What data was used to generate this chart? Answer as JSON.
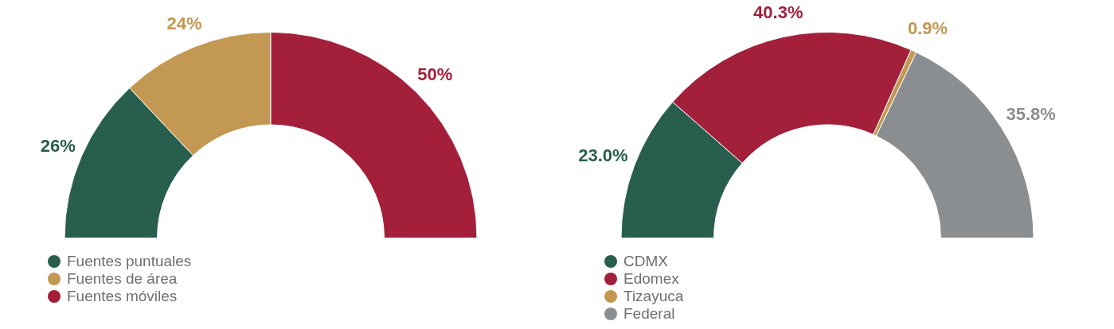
{
  "chart_data": [
    {
      "type": "donut",
      "categories": [
        "Fuentes puntuales",
        "Fuentes de área",
        "Fuentes móviles"
      ],
      "values": [
        26,
        24,
        50
      ],
      "colors": [
        "#285e4e",
        "#c39853",
        "#a31f3a"
      ],
      "value_labels": [
        "26%",
        "24%",
        "50%"
      ],
      "legend": "bottom left"
    },
    {
      "type": "donut",
      "categories": [
        "CDMX",
        "Edomex",
        "Tizayuca",
        "Federal"
      ],
      "values": [
        23.0,
        40.3,
        0.9,
        35.8
      ],
      "colors": [
        "#285e4e",
        "#a31f3a",
        "#c39853",
        "#8b8e90"
      ],
      "value_labels": [
        "23.0%",
        "40.3%",
        "0.9%",
        "35.8%"
      ],
      "legend": "bottom left"
    }
  ]
}
